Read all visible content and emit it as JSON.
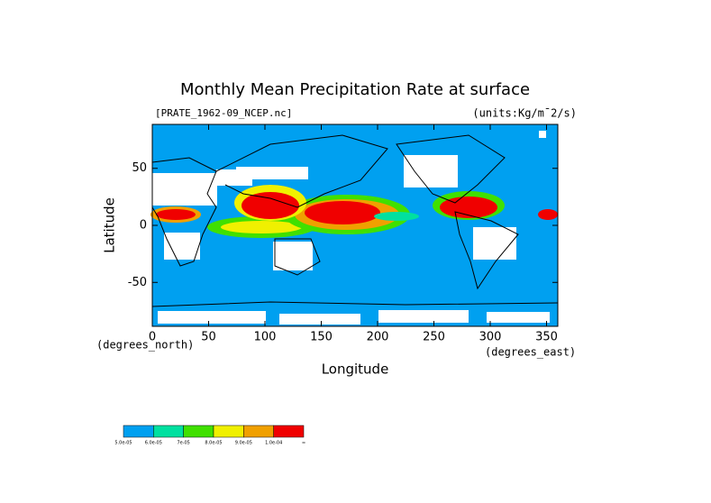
{
  "chart_data": {
    "type": "map",
    "title": "Monthly Mean Precipitation Rate at surface",
    "subtitle": "[PRATE_1962-09_NCEP.nc]",
    "units": "(units:Kg/m¯2/s)",
    "x_label": "Longitude",
    "y_label": "Latitude",
    "x_unit": "(degrees_east)",
    "y_unit": "(degrees_north)",
    "xlim": [
      0,
      360
    ],
    "xticks": [
      0,
      50,
      100,
      150,
      200,
      250,
      300,
      350
    ],
    "ylim": [
      -88.5,
      88.5
    ],
    "yticks": [
      -50,
      0,
      50
    ],
    "colorbar": {
      "colors": [
        "#00a0f0",
        "#00e0a0",
        "#40e000",
        "#f0f000",
        "#f0a000",
        "#f00000"
      ],
      "labels": [
        "5.0e-05",
        "6.0e-05",
        "7e-05",
        "8.0e-05",
        "9.0e-05",
        "1.0e-04",
        "∞"
      ]
    }
  }
}
